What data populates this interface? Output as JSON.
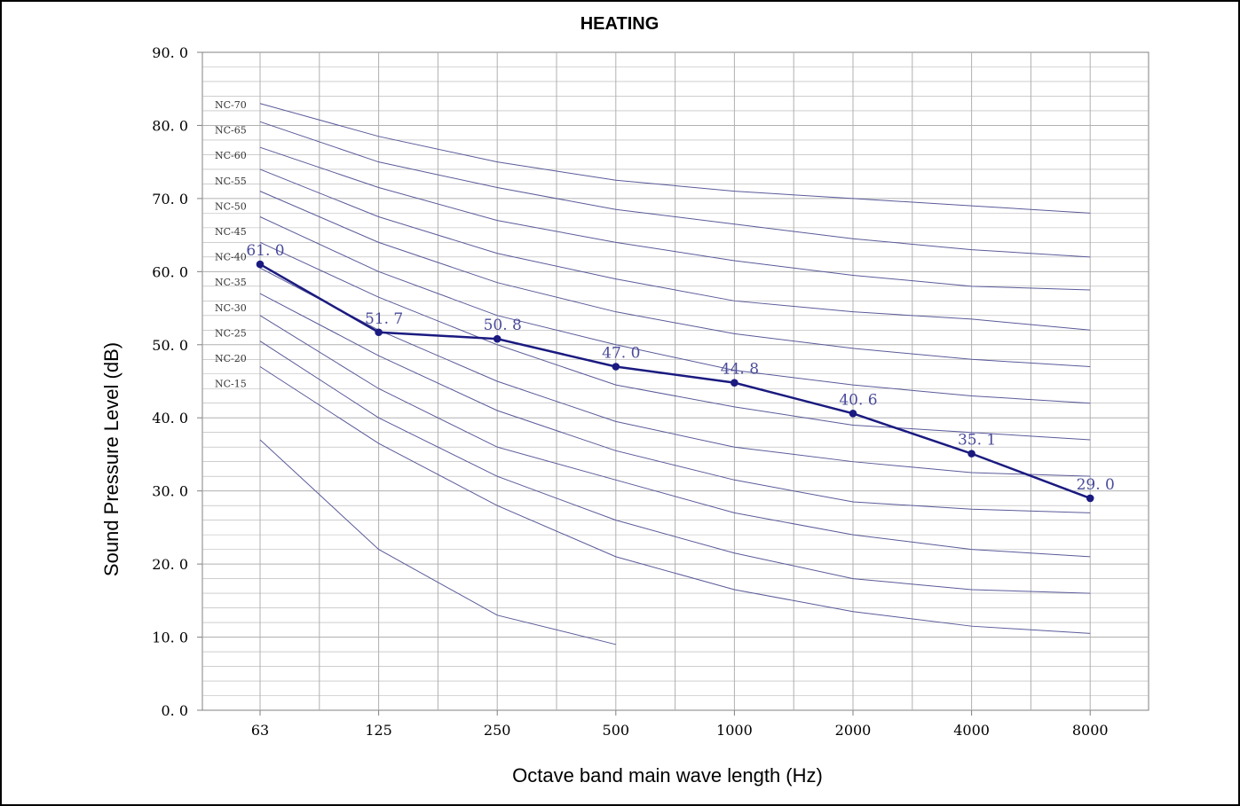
{
  "chart_data": {
    "type": "line",
    "title": "HEATING",
    "xlabel": "Octave band main wave length (Hz)",
    "ylabel": "Sound Pressure Level (dB)",
    "categories": [
      "63",
      "125",
      "250",
      "500",
      "1000",
      "2000",
      "4000",
      "8000"
    ],
    "ylim": [
      0,
      90
    ],
    "y_ticks": [
      "0. 0",
      "10. 0",
      "20. 0",
      "30. 0",
      "40. 0",
      "50. 0",
      "60. 0",
      "70. 0",
      "80. 0",
      "90. 0"
    ],
    "grid": true,
    "measured": {
      "values": [
        61.0,
        51.7,
        50.8,
        47.0,
        44.8,
        40.6,
        35.1,
        29.0
      ],
      "labels": [
        "61. 0",
        "51. 7",
        "50. 8",
        "47. 0",
        "44. 8",
        "40. 6",
        "35. 1",
        "29. 0"
      ],
      "color": "#1a1a80"
    },
    "nc_curves": [
      {
        "name": "NC-70",
        "values": [
          83,
          78.5,
          75,
          72.5,
          71,
          70,
          69,
          68
        ]
      },
      {
        "name": "NC-65",
        "values": [
          80.5,
          75,
          71.5,
          68.5,
          66.5,
          64.5,
          63,
          62
        ]
      },
      {
        "name": "NC-60",
        "values": [
          77,
          71.5,
          67,
          64,
          61.5,
          59.5,
          58,
          57.5
        ]
      },
      {
        "name": "NC-55",
        "values": [
          74,
          67.5,
          62.5,
          59,
          56,
          54.5,
          53.5,
          52
        ]
      },
      {
        "name": "NC-50",
        "values": [
          71,
          64,
          58.5,
          54.5,
          51.5,
          49.5,
          48,
          47
        ]
      },
      {
        "name": "NC-45",
        "values": [
          67.5,
          60,
          54,
          50,
          46.5,
          44.5,
          43,
          42
        ]
      },
      {
        "name": "NC-40",
        "values": [
          64,
          56.5,
          50,
          44.5,
          41.5,
          39,
          38,
          37
        ]
      },
      {
        "name": "NC-35",
        "values": [
          60.5,
          52,
          45,
          39.5,
          36,
          34,
          32.5,
          32
        ]
      },
      {
        "name": "NC-30",
        "values": [
          57,
          48.5,
          41,
          35.5,
          31.5,
          28.5,
          27.5,
          27
        ]
      },
      {
        "name": "NC-25",
        "values": [
          54,
          44,
          36,
          31.5,
          27,
          24,
          22,
          21
        ]
      },
      {
        "name": "NC-20",
        "values": [
          50.5,
          40,
          32,
          26,
          21.5,
          18,
          16.5,
          16
        ]
      },
      {
        "name": "NC-15",
        "values": [
          47,
          36.5,
          28,
          21,
          16.5,
          13.5,
          11.5,
          10.5
        ]
      },
      {
        "name": "",
        "values": [
          37,
          22,
          13,
          9
        ]
      }
    ],
    "nc_color": "#5a5a9a",
    "grid_color": "#b0b0b0"
  }
}
